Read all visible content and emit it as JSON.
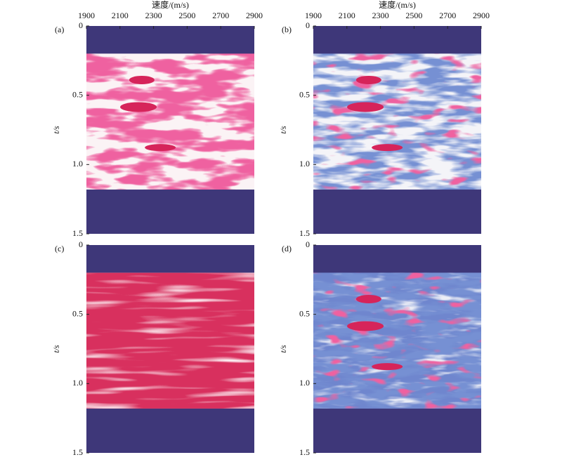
{
  "chart_data": [
    {
      "type": "heatmap",
      "label": "(a)",
      "xlabel": "速度/(m/s)",
      "ylabel": "t/s",
      "colormap": "white-red",
      "mask_color": "#3e3779",
      "xlim": [
        1900,
        2900
      ],
      "xticks": [
        1900,
        2100,
        2300,
        2500,
        2700,
        2900
      ],
      "ylim": [
        0,
        1.5
      ],
      "yticks": [
        0,
        0.5,
        {
          "value": 1,
          "label": "1.0"
        },
        1.5
      ]
    },
    {
      "type": "heatmap",
      "label": "(b)",
      "xlabel": "速度/(m/s)",
      "ylabel": "t/s",
      "colormap": "blue-white-red",
      "mask_color": "#3e3779",
      "xlim": [
        1900,
        2900
      ],
      "xticks": [
        1900,
        2100,
        2300,
        2500,
        2700,
        2900
      ],
      "ylim": [
        0,
        1.5
      ],
      "yticks": [
        0,
        0.5,
        {
          "value": 1,
          "label": "1.0"
        },
        1.5
      ]
    },
    {
      "type": "heatmap",
      "label": "(c)",
      "ylabel": "t/s",
      "colormap": "red",
      "mask_color": "#3e3779",
      "xlim": [
        1900,
        2900
      ],
      "ylim": [
        0,
        1.5
      ],
      "yticks": [
        0,
        0.5,
        {
          "value": 1,
          "label": "1.0"
        },
        1.5
      ]
    },
    {
      "type": "heatmap",
      "label": "(d)",
      "ylabel": "t/s",
      "colormap": "blue-red",
      "mask_color": "#3e3779",
      "xlim": [
        1900,
        2900
      ],
      "ylim": [
        0,
        1.5
      ],
      "yticks": [
        0,
        0.5,
        {
          "value": 1,
          "label": "1.0"
        },
        1.5
      ]
    }
  ]
}
